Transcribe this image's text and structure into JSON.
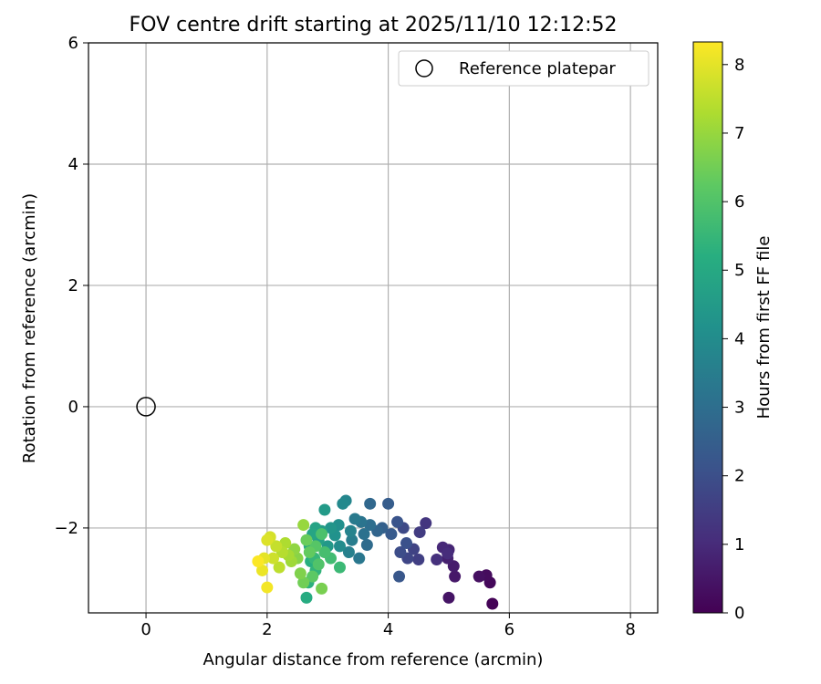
{
  "chart_data": {
    "type": "scatter",
    "title": "FOV centre drift starting at 2025/11/10 12:12:52",
    "xlabel": "Angular distance from reference (arcmin)",
    "ylabel": "Rotation from reference (arcmin)",
    "xlim": [
      -0.95,
      8.45
    ],
    "ylim": [
      -3.4,
      6
    ],
    "xticks": [
      0,
      2,
      4,
      6,
      8
    ],
    "yticks": [
      -2,
      0,
      2,
      4,
      6
    ],
    "xtick_labels": [
      "0",
      "2",
      "4",
      "6",
      "8"
    ],
    "ytick_labels": [
      "−2",
      "0",
      "2",
      "4",
      "6"
    ],
    "grid": true,
    "legend": {
      "placement": "top-right",
      "entries": [
        "Reference platepar"
      ]
    },
    "colormap": "viridis",
    "colorbar": {
      "label": "Hours from first FF file",
      "range": [
        0,
        8.33
      ],
      "ticks": [
        "0",
        "1",
        "2",
        "3",
        "4",
        "5",
        "6",
        "7",
        "8"
      ]
    },
    "reference": {
      "name": "Reference platepar",
      "x": 0,
      "y": 0
    },
    "series": [
      {
        "points": [
          [
            5.72,
            -3.25,
            0.05
          ],
          [
            5.68,
            -2.9,
            0.15
          ],
          [
            5.62,
            -2.78,
            0.25
          ],
          [
            5.5,
            -2.8,
            0.35
          ],
          [
            5.0,
            -3.15,
            0.45
          ],
          [
            5.1,
            -2.8,
            0.55
          ],
          [
            5.08,
            -2.63,
            0.65
          ],
          [
            4.98,
            -2.5,
            0.75
          ],
          [
            5.0,
            -2.36,
            0.85
          ],
          [
            4.9,
            -2.32,
            0.95
          ],
          [
            4.98,
            -2.42,
            1.05
          ],
          [
            4.8,
            -2.52,
            1.15
          ],
          [
            4.62,
            -1.92,
            1.3
          ],
          [
            4.52,
            -2.07,
            1.45
          ],
          [
            4.5,
            -2.52,
            1.55
          ],
          [
            4.42,
            -2.35,
            1.65
          ],
          [
            4.32,
            -2.5,
            1.75
          ],
          [
            4.25,
            -2.0,
            1.85
          ],
          [
            4.2,
            -2.4,
            1.95
          ],
          [
            4.3,
            -2.25,
            2.05
          ],
          [
            4.15,
            -1.9,
            2.15
          ],
          [
            4.18,
            -2.8,
            2.25
          ],
          [
            4.05,
            -2.1,
            2.35
          ],
          [
            4.0,
            -1.6,
            2.45
          ],
          [
            3.9,
            -2.0,
            2.55
          ],
          [
            3.82,
            -2.05,
            2.7
          ],
          [
            3.7,
            -1.6,
            2.8
          ],
          [
            3.65,
            -2.28,
            2.9
          ],
          [
            3.7,
            -1.95,
            3.0
          ],
          [
            3.6,
            -2.1,
            3.1
          ],
          [
            3.55,
            -1.9,
            3.2
          ],
          [
            3.52,
            -2.5,
            3.3
          ],
          [
            3.45,
            -1.85,
            3.4
          ],
          [
            3.4,
            -2.2,
            3.5
          ],
          [
            3.35,
            -2.4,
            3.6
          ],
          [
            3.38,
            -2.05,
            3.7
          ],
          [
            3.3,
            -1.55,
            3.8
          ],
          [
            3.25,
            -1.6,
            3.9
          ],
          [
            3.2,
            -2.3,
            4.0
          ],
          [
            3.18,
            -1.95,
            4.1
          ],
          [
            3.12,
            -2.12,
            4.2
          ],
          [
            3.05,
            -2.0,
            4.3
          ],
          [
            3.0,
            -2.3,
            4.4
          ],
          [
            2.95,
            -1.7,
            4.5
          ],
          [
            2.9,
            -2.05,
            4.6
          ],
          [
            2.85,
            -2.2,
            4.7
          ],
          [
            2.8,
            -2.0,
            4.8
          ],
          [
            2.75,
            -2.1,
            4.9
          ],
          [
            2.7,
            -2.3,
            5.0
          ],
          [
            2.65,
            -3.15,
            5.1
          ],
          [
            2.72,
            -2.55,
            5.2
          ],
          [
            2.68,
            -2.9,
            5.3
          ],
          [
            2.8,
            -2.7,
            5.4
          ],
          [
            2.78,
            -2.5,
            5.5
          ],
          [
            3.2,
            -2.65,
            5.6
          ],
          [
            3.05,
            -2.5,
            5.7
          ],
          [
            2.95,
            -2.4,
            5.8
          ],
          [
            2.9,
            -2.1,
            5.9
          ],
          [
            2.85,
            -2.6,
            6.0
          ],
          [
            2.8,
            -2.3,
            6.1
          ],
          [
            2.75,
            -2.8,
            6.2
          ],
          [
            2.7,
            -2.4,
            6.3
          ],
          [
            2.65,
            -2.2,
            6.4
          ],
          [
            2.6,
            -2.9,
            6.5
          ],
          [
            2.9,
            -3.0,
            6.6
          ],
          [
            2.55,
            -2.75,
            6.7
          ],
          [
            2.5,
            -2.5,
            6.8
          ],
          [
            2.45,
            -2.35,
            6.9
          ],
          [
            2.6,
            -1.95,
            7.0
          ],
          [
            2.4,
            -2.55,
            7.1
          ],
          [
            2.35,
            -2.45,
            7.2
          ],
          [
            2.3,
            -2.25,
            7.3
          ],
          [
            2.25,
            -2.4,
            7.4
          ],
          [
            2.2,
            -2.65,
            7.5
          ],
          [
            2.15,
            -2.3,
            7.6
          ],
          [
            2.1,
            -2.5,
            7.7
          ],
          [
            2.05,
            -2.15,
            7.8
          ],
          [
            2.0,
            -2.2,
            7.9
          ],
          [
            1.95,
            -2.5,
            8.0
          ],
          [
            1.92,
            -2.7,
            8.1
          ],
          [
            2.0,
            -2.98,
            8.2
          ],
          [
            1.85,
            -2.55,
            8.3
          ]
        ]
      }
    ]
  }
}
